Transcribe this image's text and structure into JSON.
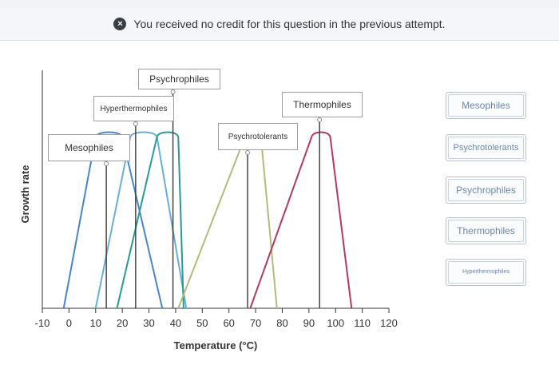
{
  "banner": {
    "message": "You received no credit for this question in the previous attempt."
  },
  "chart_data": {
    "type": "line",
    "xlabel": "Temperature (°C)",
    "ylabel": "Growth rate",
    "x_ticks": [
      -10,
      0,
      10,
      20,
      30,
      40,
      50,
      60,
      70,
      80,
      90,
      100,
      110,
      120
    ],
    "xlim": [
      -10,
      120
    ],
    "grid": false,
    "series": [
      {
        "color": "#4a84c7",
        "x": [
          -2,
          10,
          20,
          35
        ],
        "y": [
          0,
          0.72,
          0.72,
          0
        ]
      },
      {
        "color": "#6aaed6",
        "x": [
          10,
          23,
          33,
          44
        ],
        "y": [
          0,
          0.72,
          0.72,
          0
        ]
      },
      {
        "color": "#2a9a92",
        "x": [
          18,
          33,
          41,
          43
        ],
        "y": [
          0,
          0.72,
          0.72,
          0
        ]
      },
      {
        "color": "#b4ba7e",
        "x": [
          41,
          66,
          72,
          78
        ],
        "y": [
          0,
          0.72,
          0.72,
          0
        ]
      },
      {
        "color": "#b03a62",
        "x": [
          68,
          91,
          98,
          106
        ],
        "y": [
          0,
          0.72,
          0.72,
          0
        ]
      }
    ]
  },
  "drop_zones": [
    {
      "label": "Mesophiles",
      "x": 14
    },
    {
      "label": "Hyperthermophiles",
      "x": 25
    },
    {
      "label": "Psychrophiles",
      "x": 39
    },
    {
      "label": "Psychrotolerants",
      "x": 67
    },
    {
      "label": "Thermophiles",
      "x": 94
    }
  ],
  "bank": {
    "items": [
      "Mesophiles",
      "Psychrotolerants",
      "Psychrophiles",
      "Thermophiles",
      "Hyperthermophiles"
    ]
  }
}
